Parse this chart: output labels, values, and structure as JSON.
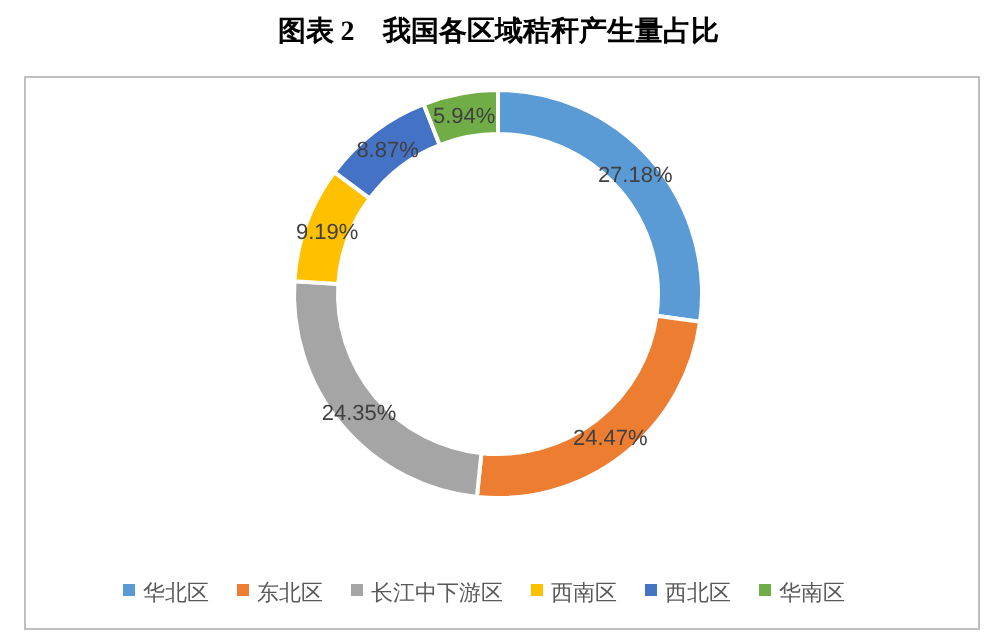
{
  "chart_data": {
    "type": "donut",
    "title": "图表 2　我国各区域秸秆产生量占比",
    "categories": [
      "华北区",
      "东北区",
      "长江中下游区",
      "西南区",
      "西北区",
      "华南区"
    ],
    "values": [
      27.18,
      24.47,
      24.35,
      9.19,
      8.87,
      5.94
    ],
    "colors": [
      "#5b9bd5",
      "#ed7d31",
      "#a5a5a5",
      "#ffc000",
      "#4472c4",
      "#70ad47"
    ],
    "value_labels": [
      "27.18%",
      "24.47%",
      "24.35%",
      "9.19%",
      "8.87%",
      "5.94%"
    ],
    "legend": "bottom"
  }
}
